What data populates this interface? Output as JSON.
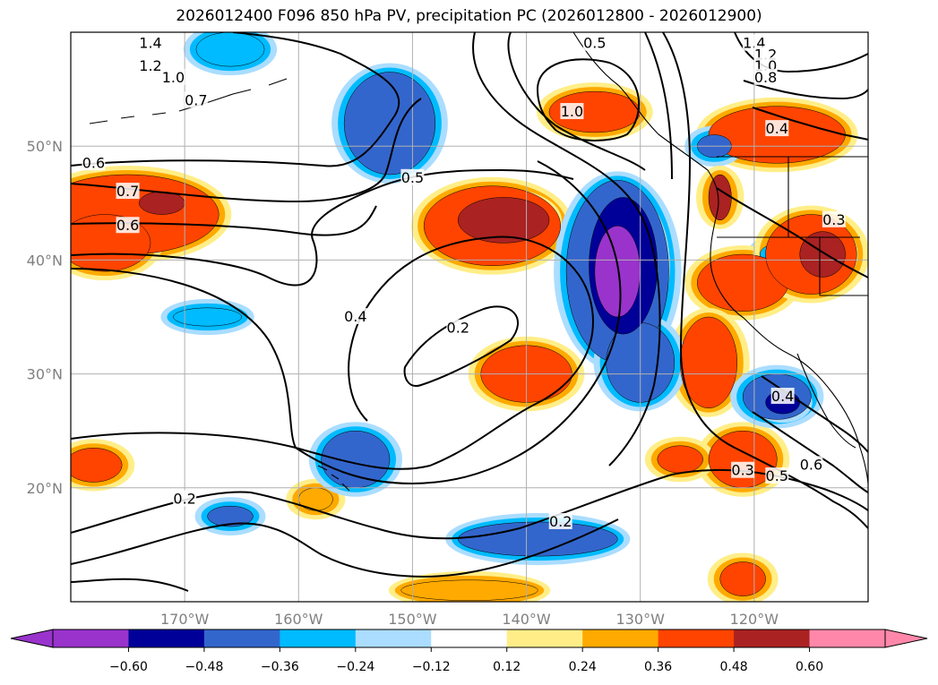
{
  "title": "2026012400 F096 850 hPa PV, precipitation PC (2026012800 - 2026012900)",
  "map": {
    "projection": "cylindrical",
    "lon_range": [
      -180,
      -110
    ],
    "lat_range": [
      10,
      60
    ],
    "lon_ticks": [
      {
        "value": -170,
        "label": "170°W"
      },
      {
        "value": -160,
        "label": "160°W"
      },
      {
        "value": -150,
        "label": "150°W"
      },
      {
        "value": -140,
        "label": "140°W"
      },
      {
        "value": -130,
        "label": "130°W"
      },
      {
        "value": -120,
        "label": "120°W"
      }
    ],
    "lat_ticks": [
      {
        "value": 20,
        "label": "20°N"
      },
      {
        "value": 30,
        "label": "30°N"
      },
      {
        "value": 40,
        "label": "40°N"
      },
      {
        "value": 50,
        "label": "50°N"
      }
    ],
    "grid": true,
    "contour_labels": [
      {
        "text": "1.4",
        "lon": -173,
        "lat": 59
      },
      {
        "text": "1.2",
        "lon": -173,
        "lat": 57
      },
      {
        "text": "1.0",
        "lon": -171,
        "lat": 56
      },
      {
        "text": "0.7",
        "lon": -169,
        "lat": 54
      },
      {
        "text": "0.6",
        "lon": -178,
        "lat": 48.5
      },
      {
        "text": "0.7",
        "lon": -175,
        "lat": 46
      },
      {
        "text": "0.6",
        "lon": -175,
        "lat": 43
      },
      {
        "text": "0.5",
        "lon": -150,
        "lat": 47.2
      },
      {
        "text": "0.4",
        "lon": -155,
        "lat": 35
      },
      {
        "text": "0.2",
        "lon": -146,
        "lat": 34
      },
      {
        "text": "1.0",
        "lon": -136,
        "lat": 53
      },
      {
        "text": "0.5",
        "lon": -134,
        "lat": 59
      },
      {
        "text": "1.4",
        "lon": -120,
        "lat": 59
      },
      {
        "text": "1.2",
        "lon": -119,
        "lat": 58
      },
      {
        "text": "1.0",
        "lon": -119,
        "lat": 57
      },
      {
        "text": "0.8",
        "lon": -119,
        "lat": 56
      },
      {
        "text": "0.4",
        "lon": -118,
        "lat": 51.5
      },
      {
        "text": "0.3",
        "lon": -113,
        "lat": 43.5
      },
      {
        "text": "0.4",
        "lon": -117.5,
        "lat": 28
      },
      {
        "text": "0.3",
        "lon": -121,
        "lat": 21.5
      },
      {
        "text": "0.5",
        "lon": -118,
        "lat": 21
      },
      {
        "text": "0.6",
        "lon": -115,
        "lat": 22
      },
      {
        "text": "0.2",
        "lon": -170,
        "lat": 19
      },
      {
        "text": "0.2",
        "lon": -137,
        "lat": 17
      }
    ],
    "shading": [
      {
        "lon": -175,
        "lat": 44,
        "rx": 8,
        "ry": 3.5,
        "level": 0.36
      },
      {
        "lon": -177,
        "lat": 41.5,
        "rx": 4,
        "ry": 2.5,
        "level": 0.36
      },
      {
        "lon": -172,
        "lat": 45,
        "rx": 2,
        "ry": 1,
        "level": 0.48
      },
      {
        "lon": -143,
        "lat": 43,
        "rx": 6,
        "ry": 3.5,
        "level": 0.36
      },
      {
        "lon": -142,
        "lat": 43.5,
        "rx": 4,
        "ry": 2,
        "level": 0.48
      },
      {
        "lon": -140,
        "lat": 30,
        "rx": 4,
        "ry": 2.5,
        "level": 0.36
      },
      {
        "lon": -121,
        "lat": 38,
        "rx": 4,
        "ry": 2.5,
        "level": 0.36
      },
      {
        "lon": -115,
        "lat": 40.5,
        "rx": 4,
        "ry": 3.5,
        "level": 0.36
      },
      {
        "lon": -114,
        "lat": 40.5,
        "rx": 2,
        "ry": 2,
        "level": 0.48
      },
      {
        "lon": -124,
        "lat": 31,
        "rx": 2.5,
        "ry": 4,
        "level": 0.36
      },
      {
        "lon": -118,
        "lat": 51,
        "rx": 6,
        "ry": 2.5,
        "level": 0.36
      },
      {
        "lon": -134,
        "lat": 53,
        "rx": 4,
        "ry": 1.8,
        "level": 0.36
      },
      {
        "lon": -123,
        "lat": 45.5,
        "rx": 1,
        "ry": 2,
        "level": 0.48
      },
      {
        "lon": -121,
        "lat": 22.5,
        "rx": 3,
        "ry": 2.5,
        "level": 0.36
      },
      {
        "lon": -126.5,
        "lat": 22.5,
        "rx": 2,
        "ry": 1.2,
        "level": 0.36
      },
      {
        "lon": -178,
        "lat": 22,
        "rx": 2.5,
        "ry": 1.5,
        "level": 0.36
      },
      {
        "lon": -121,
        "lat": 12,
        "rx": 2,
        "ry": 1.5,
        "level": 0.36
      },
      {
        "lon": -145,
        "lat": 11,
        "rx": 6,
        "ry": 0.9,
        "level": 0.24
      },
      {
        "lon": -158.5,
        "lat": 19,
        "rx": 1.5,
        "ry": 1,
        "level": 0.24
      },
      {
        "lon": -132,
        "lat": 39,
        "rx": 4.5,
        "ry": 8,
        "level": -0.36
      },
      {
        "lon": -131.5,
        "lat": 39.5,
        "rx": 3,
        "ry": 6,
        "level": -0.48
      },
      {
        "lon": -132,
        "lat": 39,
        "rx": 2,
        "ry": 4,
        "level": -0.6
      },
      {
        "lon": -130,
        "lat": 31,
        "rx": 3,
        "ry": 3.5,
        "level": -0.36
      },
      {
        "lon": -152,
        "lat": 52,
        "rx": 4,
        "ry": 4.5,
        "level": -0.36
      },
      {
        "lon": -155,
        "lat": 22.5,
        "rx": 3,
        "ry": 2.5,
        "level": -0.36
      },
      {
        "lon": -139,
        "lat": 15.5,
        "rx": 7,
        "ry": 1.5,
        "level": -0.36
      },
      {
        "lon": -118,
        "lat": 28,
        "rx": 3,
        "ry": 2,
        "level": -0.36
      },
      {
        "lon": -117.5,
        "lat": 27.5,
        "rx": 1.5,
        "ry": 1,
        "level": -0.48
      },
      {
        "lon": -166,
        "lat": 58.5,
        "rx": 3,
        "ry": 1.5,
        "level": -0.24
      },
      {
        "lon": -168,
        "lat": 35,
        "rx": 3,
        "ry": 0.8,
        "level": -0.24
      },
      {
        "lon": -166,
        "lat": 17.5,
        "rx": 2,
        "ry": 0.9,
        "level": -0.36
      },
      {
        "lon": -118,
        "lat": 40.5,
        "rx": 1.5,
        "ry": 0.9,
        "level": -0.24
      },
      {
        "lon": -123.5,
        "lat": 50,
        "rx": 1.5,
        "ry": 1,
        "level": -0.36
      }
    ],
    "colors": {
      "coast": "#000000",
      "contour": "#000000",
      "grid": "#b0b0b0"
    }
  },
  "colorbar": {
    "ticks": [
      "−0.60",
      "−0.48",
      "−0.36",
      "−0.24",
      "−0.12",
      "0.12",
      "0.24",
      "0.36",
      "0.48",
      "0.60"
    ],
    "bins": [
      "#9933cc",
      "#000099",
      "#3366cc",
      "#00bbff",
      "#aaddff",
      "#ffffff",
      "#ffee88",
      "#ffaa00",
      "#ff4400",
      "#aa2222",
      "#ff88aa"
    ],
    "under_color": "#9933cc",
    "over_color": "#ff88aa"
  }
}
